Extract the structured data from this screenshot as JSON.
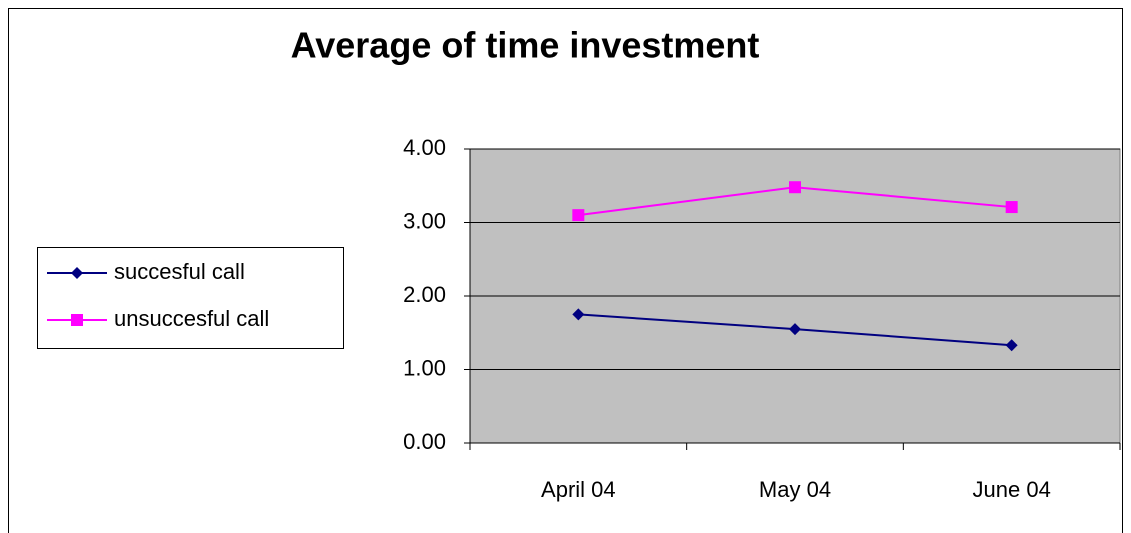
{
  "chart_data": {
    "type": "line",
    "title": "Average of time investment",
    "categories": [
      "April 04",
      "May 04",
      "June 04"
    ],
    "series": [
      {
        "name": "succesful call",
        "color": "#000080",
        "marker": "diamond",
        "values": [
          1.75,
          1.55,
          1.33
        ]
      },
      {
        "name": "unsuccesful call",
        "color": "#ff00ff",
        "marker": "square",
        "values": [
          3.1,
          3.48,
          3.21
        ]
      }
    ],
    "ylim": [
      0,
      4
    ],
    "yticks": [
      {
        "value": 0,
        "label": "0.00"
      },
      {
        "value": 1,
        "label": "1.00"
      },
      {
        "value": 2,
        "label": "2.00"
      },
      {
        "value": 3,
        "label": "3.00"
      },
      {
        "value": 4,
        "label": "4.00"
      }
    ],
    "grid": true,
    "plot_background": "#c0c0c0",
    "legend": "left"
  }
}
